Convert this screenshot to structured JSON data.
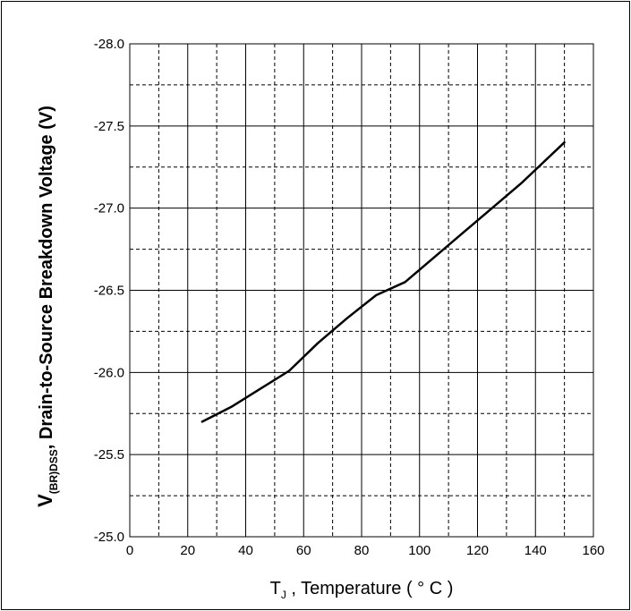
{
  "chart_data": {
    "type": "line",
    "title": "",
    "xlabel": {
      "main": "T",
      "sub": "J",
      "rest": " , Temperature ( ° C )"
    },
    "ylabel": {
      "main": "V",
      "sub": "(BR)DSS",
      "rest": ", Drain-to-Source Breakdown Voltage (V)"
    },
    "xlim": [
      0,
      160
    ],
    "ylim": [
      -25.0,
      -28.0
    ],
    "x_ticks": [
      "0",
      "20",
      "40",
      "60",
      "80",
      "100",
      "120",
      "140",
      "160"
    ],
    "y_ticks": [
      "-28.0",
      "-27.5",
      "-27.0",
      "-26.5",
      "-26.0",
      "-25.5",
      "-25.0"
    ],
    "grid": true,
    "series": [
      {
        "x": [
          25,
          35,
          45,
          55,
          65,
          75,
          85,
          95,
          105,
          115,
          125,
          135,
          150
        ],
        "y": [
          -25.7,
          -25.79,
          -25.9,
          -26.01,
          -26.18,
          -26.33,
          -26.47,
          -26.55,
          -26.7,
          -26.85,
          -27.0,
          -27.15,
          -27.4
        ]
      }
    ],
    "colors": {
      "line": "#000000",
      "grid": "#000000",
      "background": "#ffffff"
    }
  }
}
